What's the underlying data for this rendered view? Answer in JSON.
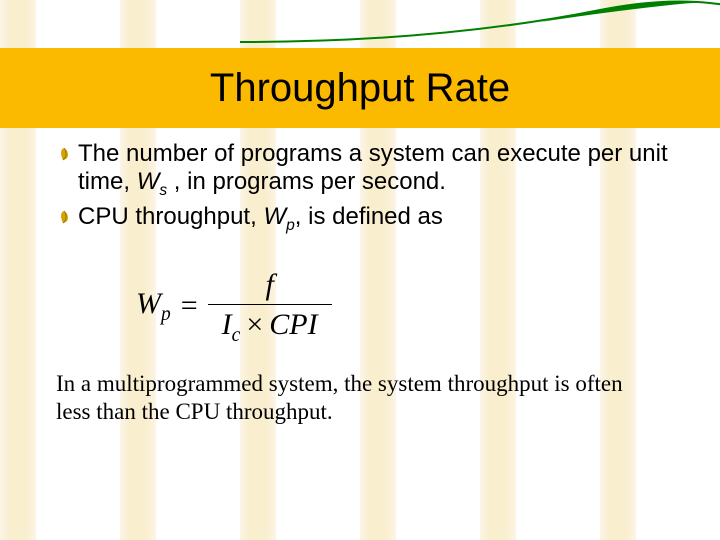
{
  "title": "Throughput Rate",
  "bullets": {
    "b1_pre": "The number of programs a system can execute per unit time, ",
    "b1_var": "W",
    "b1_sub": "s",
    "b1_post": " , in programs per second.",
    "b2_pre": "CPU throughput, ",
    "b2_var": "W",
    "b2_sub": "p",
    "b2_post": ", is defined as"
  },
  "formula": {
    "lhs_var": "W",
    "lhs_sub": "p",
    "numerator": "f",
    "den_left_var": "I",
    "den_left_sub": "c",
    "den_mult": "×",
    "den_right": "CPI"
  },
  "footer": "In a multiprogrammed system, the system throughput is often less than the CPU throughput.",
  "style": {
    "title_bg": "#fbb900",
    "title_color": "#000000",
    "title_fontsize": 40,
    "body_fontsize": 24,
    "footer_fontsize": 23,
    "swoosh_color": "#008000",
    "bg_column_color": "#f2d890",
    "bg_columns_x": [
      0,
      120,
      240,
      360,
      480,
      600
    ]
  }
}
